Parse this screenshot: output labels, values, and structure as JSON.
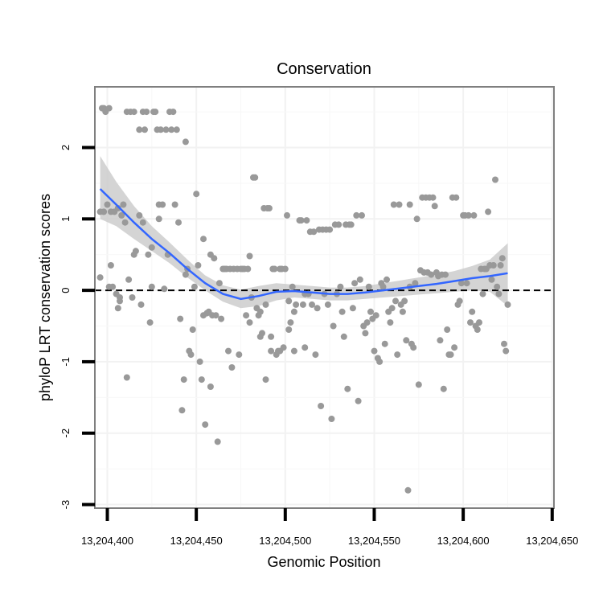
{
  "chart_data": {
    "type": "scatter",
    "title": "Conservation",
    "xlabel": "Genomic Position",
    "ylabel": "phyloP LRT conservation scores",
    "xlim": [
      13204393,
      13204651
    ],
    "ylim": [
      -3.05,
      2.85
    ],
    "x_ticks": [
      13204400,
      13204450,
      13204500,
      13204550,
      13204600,
      13204650
    ],
    "x_tick_labels": [
      "13,204,400",
      "13,204,450",
      "13,204,500",
      "13,204,550",
      "13,204,600",
      "13,204,650"
    ],
    "y_ticks": [
      -3,
      -2,
      -1,
      0,
      1,
      2
    ],
    "y_tick_labels": [
      "-3",
      "-2",
      "-1",
      "0",
      "1",
      "2"
    ],
    "reference_line": {
      "y": 0,
      "style": "dashed"
    },
    "point_color": "#999999",
    "smooth_color": "#3366ff",
    "band_color": "#cccccc",
    "points": [
      [
        13204396,
        1.1
      ],
      [
        13204396,
        0.18
      ],
      [
        13204397,
        2.55
      ],
      [
        13204398,
        1.1
      ],
      [
        13204398,
        2.55
      ],
      [
        13204399,
        2.5
      ],
      [
        13204400,
        1.2
      ],
      [
        13204401,
        0.05
      ],
      [
        13204401,
        2.55
      ],
      [
        13204402,
        0.35
      ],
      [
        13204402,
        1.1
      ],
      [
        13204403,
        0.05
      ],
      [
        13204404,
        1.1
      ],
      [
        13204405,
        -0.05
      ],
      [
        13204406,
        1.15
      ],
      [
        13204406,
        -0.25
      ],
      [
        13204407,
        -0.15
      ],
      [
        13204407,
        -0.1
      ],
      [
        13204408,
        1.05
      ],
      [
        13204409,
        1.2
      ],
      [
        13204410,
        0.95
      ],
      [
        13204411,
        2.5
      ],
      [
        13204411,
        -1.22
      ],
      [
        13204412,
        0.15
      ],
      [
        13204413,
        2.5
      ],
      [
        13204414,
        -0.1
      ],
      [
        13204415,
        0.5
      ],
      [
        13204415,
        2.5
      ],
      [
        13204416,
        0.55
      ],
      [
        13204418,
        2.25
      ],
      [
        13204418,
        1.05
      ],
      [
        13204419,
        -0.2
      ],
      [
        13204420,
        2.5
      ],
      [
        13204420,
        0.95
      ],
      [
        13204421,
        2.25
      ],
      [
        13204422,
        2.5
      ],
      [
        13204423,
        0.5
      ],
      [
        13204424,
        -0.45
      ],
      [
        13204425,
        0.6
      ],
      [
        13204425,
        0.05
      ],
      [
        13204426,
        2.5
      ],
      [
        13204427,
        2.5
      ],
      [
        13204428,
        2.25
      ],
      [
        13204429,
        1.2
      ],
      [
        13204429,
        1.0
      ],
      [
        13204430,
        2.25
      ],
      [
        13204431,
        1.2
      ],
      [
        13204432,
        0.02
      ],
      [
        13204433,
        2.25
      ],
      [
        13204434,
        0.5
      ],
      [
        13204435,
        2.5
      ],
      [
        13204436,
        2.25
      ],
      [
        13204437,
        2.5
      ],
      [
        13204438,
        1.2
      ],
      [
        13204439,
        2.25
      ],
      [
        13204440,
        0.95
      ],
      [
        13204441,
        -0.4
      ],
      [
        13204442,
        -1.68
      ],
      [
        13204443,
        -1.25
      ],
      [
        13204444,
        0.22
      ],
      [
        13204444,
        2.08
      ],
      [
        13204445,
        0.3
      ],
      [
        13204446,
        -0.85
      ],
      [
        13204447,
        -0.9
      ],
      [
        13204448,
        -0.55
      ],
      [
        13204449,
        0.05
      ],
      [
        13204450,
        1.35
      ],
      [
        13204451,
        0.35
      ],
      [
        13204452,
        -1.0
      ],
      [
        13204453,
        -1.25
      ],
      [
        13204454,
        0.72
      ],
      [
        13204454,
        -0.35
      ],
      [
        13204455,
        -1.88
      ],
      [
        13204456,
        -0.32
      ],
      [
        13204457,
        -0.3
      ],
      [
        13204458,
        0.5
      ],
      [
        13204458,
        -1.35
      ],
      [
        13204459,
        -0.35
      ],
      [
        13204460,
        0.45
      ],
      [
        13204461,
        -0.35
      ],
      [
        13204462,
        -2.12
      ],
      [
        13204463,
        0.1
      ],
      [
        13204464,
        -0.4
      ],
      [
        13204465,
        0.3
      ],
      [
        13204466,
        0.3
      ],
      [
        13204467,
        0.3
      ],
      [
        13204468,
        -0.85
      ],
      [
        13204469,
        0.3
      ],
      [
        13204470,
        -1.08
      ],
      [
        13204471,
        0.3
      ],
      [
        13204473,
        0.3
      ],
      [
        13204474,
        -0.9
      ],
      [
        13204475,
        0.3
      ],
      [
        13204476,
        0.3
      ],
      [
        13204477,
        0.3
      ],
      [
        13204478,
        -0.35
      ],
      [
        13204479,
        0.3
      ],
      [
        13204480,
        -0.45
      ],
      [
        13204480,
        0.48
      ],
      [
        13204481,
        -0.1
      ],
      [
        13204482,
        1.58
      ],
      [
        13204483,
        1.58
      ],
      [
        13204484,
        -0.25
      ],
      [
        13204485,
        -0.35
      ],
      [
        13204486,
        -0.3
      ],
      [
        13204486,
        -0.65
      ],
      [
        13204487,
        -0.6
      ],
      [
        13204488,
        1.15
      ],
      [
        13204489,
        -1.25
      ],
      [
        13204489,
        -0.2
      ],
      [
        13204490,
        1.15
      ],
      [
        13204491,
        1.15
      ],
      [
        13204492,
        -0.85
      ],
      [
        13204492,
        -0.65
      ],
      [
        13204493,
        0.3
      ],
      [
        13204494,
        0.3
      ],
      [
        13204495,
        -0.9
      ],
      [
        13204496,
        -0.85
      ],
      [
        13204497,
        0.3
      ],
      [
        13204497,
        -0.85
      ],
      [
        13204498,
        0.3
      ],
      [
        13204499,
        -0.8
      ],
      [
        13204500,
        0.3
      ],
      [
        13204501,
        1.05
      ],
      [
        13204502,
        -0.15
      ],
      [
        13204502,
        -0.55
      ],
      [
        13204503,
        -0.45
      ],
      [
        13204504,
        0.05
      ],
      [
        13204505,
        -0.85
      ],
      [
        13204505,
        -0.3
      ],
      [
        13204506,
        -0.2
      ],
      [
        13204508,
        0.98
      ],
      [
        13204509,
        0.98
      ],
      [
        13204510,
        -0.2
      ],
      [
        13204511,
        -0.8
      ],
      [
        13204511,
        -0.05
      ],
      [
        13204512,
        0.98
      ],
      [
        13204513,
        -0.05
      ],
      [
        13204514,
        0.82
      ],
      [
        13204515,
        -0.2
      ],
      [
        13204516,
        0.82
      ],
      [
        13204517,
        -0.9
      ],
      [
        13204518,
        -0.25
      ],
      [
        13204519,
        0.85
      ],
      [
        13204520,
        -1.62
      ],
      [
        13204521,
        0.85
      ],
      [
        13204522,
        -0.05
      ],
      [
        13204523,
        0.85
      ],
      [
        13204524,
        -0.2
      ],
      [
        13204525,
        0.85
      ],
      [
        13204526,
        -1.8
      ],
      [
        13204527,
        -0.5
      ],
      [
        13204528,
        0.92
      ],
      [
        13204529,
        -0.05
      ],
      [
        13204530,
        0.92
      ],
      [
        13204531,
        0.05
      ],
      [
        13204532,
        -0.3
      ],
      [
        13204533,
        -0.65
      ],
      [
        13204534,
        0.92
      ],
      [
        13204535,
        -1.38
      ],
      [
        13204536,
        0.92
      ],
      [
        13204537,
        0.92
      ],
      [
        13204538,
        -0.25
      ],
      [
        13204539,
        0.1
      ],
      [
        13204540,
        1.05
      ],
      [
        13204541,
        -1.55
      ],
      [
        13204542,
        0.15
      ],
      [
        13204543,
        1.05
      ],
      [
        13204544,
        -0.5
      ],
      [
        13204545,
        -0.6
      ],
      [
        13204546,
        -0.45
      ],
      [
        13204547,
        0.05
      ],
      [
        13204548,
        -0.3
      ],
      [
        13204549,
        -0.4
      ],
      [
        13204550,
        -0.85
      ],
      [
        13204551,
        -0.35
      ],
      [
        13204552,
        -0.95
      ],
      [
        13204553,
        -1.0
      ],
      [
        13204554,
        0.1
      ],
      [
        13204555,
        0.05
      ],
      [
        13204556,
        -0.75
      ],
      [
        13204557,
        0.15
      ],
      [
        13204558,
        -0.3
      ],
      [
        13204559,
        -0.45
      ],
      [
        13204560,
        -0.25
      ],
      [
        13204561,
        1.2
      ],
      [
        13204562,
        -0.15
      ],
      [
        13204563,
        -0.9
      ],
      [
        13204564,
        1.2
      ],
      [
        13204565,
        -0.2
      ],
      [
        13204566,
        -0.3
      ],
      [
        13204567,
        -0.15
      ],
      [
        13204568,
        -0.7
      ],
      [
        13204569,
        -2.8
      ],
      [
        13204570,
        1.2
      ],
      [
        13204570,
        0.05
      ],
      [
        13204571,
        -0.75
      ],
      [
        13204572,
        -0.8
      ],
      [
        13204573,
        0.1
      ],
      [
        13204574,
        1.0
      ],
      [
        13204575,
        -1.32
      ],
      [
        13204576,
        0.28
      ],
      [
        13204577,
        1.3
      ],
      [
        13204578,
        0.25
      ],
      [
        13204579,
        1.3
      ],
      [
        13204580,
        0.25
      ],
      [
        13204581,
        1.3
      ],
      [
        13204582,
        0.22
      ],
      [
        13204583,
        1.3
      ],
      [
        13204584,
        1.18
      ],
      [
        13204585,
        0.25
      ],
      [
        13204586,
        0.2
      ],
      [
        13204587,
        -0.7
      ],
      [
        13204588,
        0.22
      ],
      [
        13204589,
        -1.38
      ],
      [
        13204590,
        0.22
      ],
      [
        13204591,
        -0.55
      ],
      [
        13204592,
        -0.9
      ],
      [
        13204593,
        -0.9
      ],
      [
        13204594,
        1.3
      ],
      [
        13204595,
        -0.8
      ],
      [
        13204596,
        1.3
      ],
      [
        13204597,
        -0.2
      ],
      [
        13204598,
        -0.15
      ],
      [
        13204599,
        0.1
      ],
      [
        13204600,
        1.05
      ],
      [
        13204601,
        1.05
      ],
      [
        13204602,
        0.1
      ],
      [
        13204603,
        1.05
      ],
      [
        13204604,
        -0.45
      ],
      [
        13204605,
        -0.3
      ],
      [
        13204606,
        1.05
      ],
      [
        13204607,
        -0.5
      ],
      [
        13204608,
        -0.55
      ],
      [
        13204609,
        -0.45
      ],
      [
        13204610,
        0.3
      ],
      [
        13204611,
        -0.05
      ],
      [
        13204612,
        0.3
      ],
      [
        13204613,
        0.3
      ],
      [
        13204614,
        1.1
      ],
      [
        13204615,
        0.35
      ],
      [
        13204616,
        0.15
      ],
      [
        13204617,
        0.35
      ],
      [
        13204618,
        1.55
      ],
      [
        13204619,
        0.05
      ],
      [
        13204620,
        -0.05
      ],
      [
        13204621,
        0.35
      ],
      [
        13204622,
        0.45
      ],
      [
        13204623,
        -0.75
      ],
      [
        13204624,
        -0.85
      ],
      [
        13204625,
        -0.2
      ]
    ],
    "smooth": {
      "x": [
        13204396,
        13204405,
        13204415,
        13204425,
        13204435,
        13204445,
        13204455,
        13204465,
        13204475,
        13204485,
        13204495,
        13204505,
        13204515,
        13204525,
        13204535,
        13204545,
        13204555,
        13204565,
        13204575,
        13204585,
        13204595,
        13204605,
        13204615,
        13204625
      ],
      "y": [
        1.42,
        1.2,
        0.95,
        0.72,
        0.52,
        0.3,
        0.1,
        -0.05,
        -0.12,
        -0.08,
        -0.02,
        -0.01,
        -0.03,
        -0.05,
        -0.05,
        -0.03,
        0.0,
        0.03,
        0.06,
        0.09,
        0.13,
        0.17,
        0.2,
        0.24
      ],
      "se_low": [
        1.0,
        0.9,
        0.72,
        0.55,
        0.38,
        0.18,
        0.0,
        -0.16,
        -0.25,
        -0.22,
        -0.14,
        -0.1,
        -0.12,
        -0.14,
        -0.14,
        -0.12,
        -0.1,
        -0.08,
        -0.06,
        -0.04,
        -0.02,
        0.0,
        -0.02,
        -0.22
      ],
      "se_high": [
        1.88,
        1.52,
        1.18,
        0.9,
        0.67,
        0.43,
        0.21,
        0.07,
        0.01,
        0.06,
        0.1,
        0.08,
        0.06,
        0.04,
        0.04,
        0.06,
        0.1,
        0.14,
        0.18,
        0.22,
        0.27,
        0.34,
        0.43,
        0.66
      ]
    }
  }
}
